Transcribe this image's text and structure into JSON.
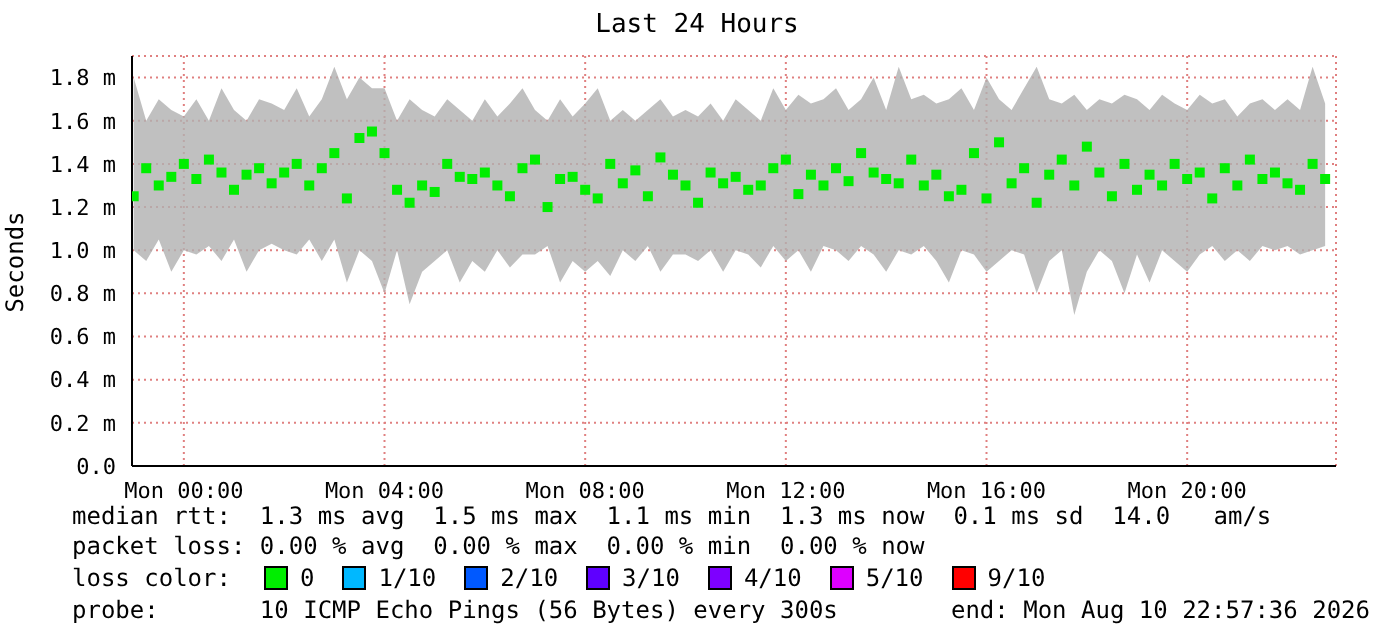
{
  "chart_data": {
    "type": "scatter",
    "title": "Last 24 Hours",
    "ylabel": "Seconds",
    "legend_title": "loss color:",
    "legend": "bottom",
    "grid": true,
    "marker": "square",
    "xlim": [
      "2026-08-09T22:58",
      "2026-08-10T22:58"
    ],
    "xticks": [
      {
        "value": "2026-08-10T00:00",
        "label": "Mon 00:00"
      },
      {
        "value": "2026-08-10T04:00",
        "label": "Mon 04:00"
      },
      {
        "value": "2026-08-10T08:00",
        "label": "Mon 08:00"
      },
      {
        "value": "2026-08-10T12:00",
        "label": "Mon 12:00"
      },
      {
        "value": "2026-08-10T16:00",
        "label": "Mon 16:00"
      },
      {
        "value": "2026-08-10T20:00",
        "label": "Mon 20:00"
      }
    ],
    "ylim": [
      0,
      1.9
    ],
    "yticks": [
      {
        "value": 0,
        "label": "0.0"
      },
      {
        "value": 0.2,
        "label": "0.2 m"
      },
      {
        "value": 0.4,
        "label": "0.4 m"
      },
      {
        "value": 0.6,
        "label": "0.6 m"
      },
      {
        "value": 0.8,
        "label": "0.8 m"
      },
      {
        "value": 1.0,
        "label": "1.0 m"
      },
      {
        "value": 1.2,
        "label": "1.2 m"
      },
      {
        "value": 1.4,
        "label": "1.4 m"
      },
      {
        "value": 1.6,
        "label": "1.6 m"
      },
      {
        "value": 1.8,
        "label": "1.8 m"
      }
    ],
    "x": [
      "2026-08-09T23:00",
      "2026-08-09T23:15",
      "2026-08-09T23:30",
      "2026-08-09T23:45",
      "2026-08-10T00:00",
      "2026-08-10T00:15",
      "2026-08-10T00:30",
      "2026-08-10T00:45",
      "2026-08-10T01:00",
      "2026-08-10T01:15",
      "2026-08-10T01:30",
      "2026-08-10T01:45",
      "2026-08-10T02:00",
      "2026-08-10T02:15",
      "2026-08-10T02:30",
      "2026-08-10T02:45",
      "2026-08-10T03:00",
      "2026-08-10T03:15",
      "2026-08-10T03:30",
      "2026-08-10T03:45",
      "2026-08-10T04:00",
      "2026-08-10T04:15",
      "2026-08-10T04:30",
      "2026-08-10T04:45",
      "2026-08-10T05:00",
      "2026-08-10T05:15",
      "2026-08-10T05:30",
      "2026-08-10T05:45",
      "2026-08-10T06:00",
      "2026-08-10T06:15",
      "2026-08-10T06:30",
      "2026-08-10T06:45",
      "2026-08-10T07:00",
      "2026-08-10T07:15",
      "2026-08-10T07:30",
      "2026-08-10T07:45",
      "2026-08-10T08:00",
      "2026-08-10T08:15",
      "2026-08-10T08:30",
      "2026-08-10T08:45",
      "2026-08-10T09:00",
      "2026-08-10T09:15",
      "2026-08-10T09:30",
      "2026-08-10T09:45",
      "2026-08-10T10:00",
      "2026-08-10T10:15",
      "2026-08-10T10:30",
      "2026-08-10T10:45",
      "2026-08-10T11:00",
      "2026-08-10T11:15",
      "2026-08-10T11:30",
      "2026-08-10T11:45",
      "2026-08-10T12:00",
      "2026-08-10T12:15",
      "2026-08-10T12:30",
      "2026-08-10T12:45",
      "2026-08-10T13:00",
      "2026-08-10T13:15",
      "2026-08-10T13:30",
      "2026-08-10T13:45",
      "2026-08-10T14:00",
      "2026-08-10T14:15",
      "2026-08-10T14:30",
      "2026-08-10T14:45",
      "2026-08-10T15:00",
      "2026-08-10T15:15",
      "2026-08-10T15:30",
      "2026-08-10T15:45",
      "2026-08-10T16:00",
      "2026-08-10T16:15",
      "2026-08-10T16:30",
      "2026-08-10T16:45",
      "2026-08-10T17:00",
      "2026-08-10T17:15",
      "2026-08-10T17:30",
      "2026-08-10T17:45",
      "2026-08-10T18:00",
      "2026-08-10T18:15",
      "2026-08-10T18:30",
      "2026-08-10T18:45",
      "2026-08-10T19:00",
      "2026-08-10T19:15",
      "2026-08-10T19:30",
      "2026-08-10T19:45",
      "2026-08-10T20:00",
      "2026-08-10T20:15",
      "2026-08-10T20:30",
      "2026-08-10T20:45",
      "2026-08-10T21:00",
      "2026-08-10T21:15",
      "2026-08-10T21:30",
      "2026-08-10T21:45",
      "2026-08-10T22:00",
      "2026-08-10T22:15",
      "2026-08-10T22:30",
      "2026-08-10T22:45"
    ],
    "series": [
      {
        "name": "0",
        "color": "#00ee00",
        "values": [
          1.25,
          1.38,
          1.3,
          1.34,
          1.4,
          1.33,
          1.42,
          1.36,
          1.28,
          1.35,
          1.38,
          1.31,
          1.36,
          1.4,
          1.3,
          1.38,
          1.45,
          1.24,
          1.52,
          1.55,
          1.45,
          1.28,
          1.22,
          1.3,
          1.27,
          1.4,
          1.34,
          1.33,
          1.36,
          1.3,
          1.25,
          1.38,
          1.42,
          1.2,
          1.33,
          1.34,
          1.28,
          1.24,
          1.4,
          1.31,
          1.37,
          1.25,
          1.43,
          1.35,
          1.3,
          1.22,
          1.36,
          1.31,
          1.34,
          1.28,
          1.3,
          1.38,
          1.42,
          1.26,
          1.35,
          1.3,
          1.38,
          1.32,
          1.45,
          1.36,
          1.33,
          1.31,
          1.42,
          1.3,
          1.35,
          1.25,
          1.28,
          1.45,
          1.24,
          1.5,
          1.31,
          1.38,
          1.22,
          1.35,
          1.42,
          1.3,
          1.48,
          1.36,
          1.25,
          1.4,
          1.28,
          1.35,
          1.3,
          1.4,
          1.33,
          1.36,
          1.24,
          1.38,
          1.3,
          1.42,
          1.33,
          1.36,
          1.31,
          1.28,
          1.4,
          1.33
        ],
        "lower": [
          1.0,
          0.95,
          1.05,
          0.9,
          1.0,
          0.98,
          1.02,
          0.95,
          1.05,
          0.9,
          1.0,
          1.03,
          1.0,
          0.98,
          1.05,
          0.95,
          1.05,
          0.85,
          1.0,
          0.95,
          0.8,
          1.0,
          0.75,
          0.9,
          0.95,
          1.0,
          0.85,
          0.95,
          0.9,
          1.0,
          0.92,
          0.98,
          0.98,
          1.02,
          0.85,
          0.95,
          0.9,
          0.95,
          0.88,
          1.0,
          0.95,
          1.02,
          0.9,
          0.98,
          0.98,
          0.95,
          1.0,
          0.9,
          1.0,
          0.98,
          0.92,
          1.02,
          0.95,
          1.0,
          0.9,
          1.02,
          1.0,
          0.95,
          1.02,
          0.98,
          0.9,
          1.0,
          0.98,
          1.02,
          0.95,
          0.85,
          1.0,
          0.98,
          0.9,
          0.95,
          1.0,
          0.98,
          0.8,
          0.95,
          1.0,
          0.7,
          0.9,
          1.0,
          0.95,
          0.8,
          0.98,
          0.85,
          1.0,
          0.95,
          0.9,
          0.98,
          1.02,
          0.95,
          1.0,
          0.95,
          1.02,
          1.0,
          1.02,
          0.98,
          1.0,
          1.02
        ],
        "upper": [
          1.8,
          1.6,
          1.7,
          1.65,
          1.62,
          1.7,
          1.6,
          1.75,
          1.65,
          1.6,
          1.7,
          1.68,
          1.65,
          1.75,
          1.62,
          1.7,
          1.85,
          1.7,
          1.8,
          1.75,
          1.75,
          1.6,
          1.7,
          1.65,
          1.62,
          1.7,
          1.65,
          1.6,
          1.7,
          1.62,
          1.68,
          1.75,
          1.65,
          1.6,
          1.7,
          1.62,
          1.68,
          1.75,
          1.6,
          1.65,
          1.6,
          1.65,
          1.7,
          1.62,
          1.65,
          1.62,
          1.68,
          1.6,
          1.7,
          1.65,
          1.6,
          1.75,
          1.65,
          1.72,
          1.68,
          1.7,
          1.75,
          1.65,
          1.7,
          1.8,
          1.65,
          1.85,
          1.7,
          1.72,
          1.68,
          1.7,
          1.75,
          1.65,
          1.8,
          1.7,
          1.65,
          1.75,
          1.85,
          1.7,
          1.68,
          1.72,
          1.65,
          1.7,
          1.68,
          1.72,
          1.7,
          1.65,
          1.72,
          1.68,
          1.65,
          1.72,
          1.68,
          1.7,
          1.62,
          1.68,
          1.7,
          1.65,
          1.7,
          1.65,
          1.85,
          1.68
        ]
      },
      {
        "name": "1/10",
        "color": "#00b8ff",
        "values": [
          null,
          null,
          null,
          null,
          null,
          null,
          null,
          null,
          null,
          null,
          null,
          null,
          null,
          null,
          null,
          null,
          null,
          null,
          null,
          null,
          null,
          null,
          null,
          null,
          null,
          null,
          null,
          null,
          null,
          null,
          null,
          null,
          null,
          null,
          null,
          null,
          null,
          null,
          null,
          null,
          null,
          null,
          null,
          null,
          null,
          null,
          null,
          null,
          null,
          null,
          null,
          null,
          null,
          null,
          null,
          null,
          null,
          null,
          null,
          null,
          null,
          null,
          null,
          null,
          null,
          null,
          null,
          null,
          null,
          null,
          null,
          null,
          null,
          null,
          null,
          null,
          null,
          null,
          null,
          null,
          null,
          null,
          null,
          null,
          null,
          null,
          null,
          null,
          null,
          null,
          null,
          null,
          null,
          null,
          null,
          null
        ]
      },
      {
        "name": "2/10",
        "color": "#0059ff",
        "values": [
          null,
          null,
          null,
          null,
          null,
          null,
          null,
          null,
          null,
          null,
          null,
          null,
          null,
          null,
          null,
          null,
          null,
          null,
          null,
          null,
          null,
          null,
          null,
          null,
          null,
          null,
          null,
          null,
          null,
          null,
          null,
          null,
          null,
          null,
          null,
          null,
          null,
          null,
          null,
          null,
          null,
          null,
          null,
          null,
          null,
          null,
          null,
          null,
          null,
          null,
          null,
          null,
          null,
          null,
          null,
          null,
          null,
          null,
          null,
          null,
          null,
          null,
          null,
          null,
          null,
          null,
          null,
          null,
          null,
          null,
          null,
          null,
          null,
          null,
          null,
          null,
          null,
          null,
          null,
          null,
          null,
          null,
          null,
          null,
          null,
          null,
          null,
          null,
          null,
          null,
          null,
          null,
          null,
          null,
          null,
          null
        ]
      },
      {
        "name": "3/10",
        "color": "#5e00ff",
        "values": [
          null,
          null,
          null,
          null,
          null,
          null,
          null,
          null,
          null,
          null,
          null,
          null,
          null,
          null,
          null,
          null,
          null,
          null,
          null,
          null,
          null,
          null,
          null,
          null,
          null,
          null,
          null,
          null,
          null,
          null,
          null,
          null,
          null,
          null,
          null,
          null,
          null,
          null,
          null,
          null,
          null,
          null,
          null,
          null,
          null,
          null,
          null,
          null,
          null,
          null,
          null,
          null,
          null,
          null,
          null,
          null,
          null,
          null,
          null,
          null,
          null,
          null,
          null,
          null,
          null,
          null,
          null,
          null,
          null,
          null,
          null,
          null,
          null,
          null,
          null,
          null,
          null,
          null,
          null,
          null,
          null,
          null,
          null,
          null,
          null,
          null,
          null,
          null,
          null,
          null,
          null,
          null,
          null,
          null,
          null,
          null
        ]
      },
      {
        "name": "4/10",
        "color": "#7e00ff",
        "values": [
          null,
          null,
          null,
          null,
          null,
          null,
          null,
          null,
          null,
          null,
          null,
          null,
          null,
          null,
          null,
          null,
          null,
          null,
          null,
          null,
          null,
          null,
          null,
          null,
          null,
          null,
          null,
          null,
          null,
          null,
          null,
          null,
          null,
          null,
          null,
          null,
          null,
          null,
          null,
          null,
          null,
          null,
          null,
          null,
          null,
          null,
          null,
          null,
          null,
          null,
          null,
          null,
          null,
          null,
          null,
          null,
          null,
          null,
          null,
          null,
          null,
          null,
          null,
          null,
          null,
          null,
          null,
          null,
          null,
          null,
          null,
          null,
          null,
          null,
          null,
          null,
          null,
          null,
          null,
          null,
          null,
          null,
          null,
          null,
          null,
          null,
          null,
          null,
          null,
          null,
          null,
          null,
          null,
          null,
          null,
          null
        ]
      },
      {
        "name": "5/10",
        "color": "#dd00ff",
        "values": [
          null,
          null,
          null,
          null,
          null,
          null,
          null,
          null,
          null,
          null,
          null,
          null,
          null,
          null,
          null,
          null,
          null,
          null,
          null,
          null,
          null,
          null,
          null,
          null,
          null,
          null,
          null,
          null,
          null,
          null,
          null,
          null,
          null,
          null,
          null,
          null,
          null,
          null,
          null,
          null,
          null,
          null,
          null,
          null,
          null,
          null,
          null,
          null,
          null,
          null,
          null,
          null,
          null,
          null,
          null,
          null,
          null,
          null,
          null,
          null,
          null,
          null,
          null,
          null,
          null,
          null,
          null,
          null,
          null,
          null,
          null,
          null,
          null,
          null,
          null,
          null,
          null,
          null,
          null,
          null,
          null,
          null,
          null,
          null,
          null,
          null,
          null,
          null,
          null,
          null,
          null,
          null,
          null,
          null,
          null,
          null
        ]
      },
      {
        "name": "9/10",
        "color": "#ff0000",
        "values": [
          null,
          null,
          null,
          null,
          null,
          null,
          null,
          null,
          null,
          null,
          null,
          null,
          null,
          null,
          null,
          null,
          null,
          null,
          null,
          null,
          null,
          null,
          null,
          null,
          null,
          null,
          null,
          null,
          null,
          null,
          null,
          null,
          null,
          null,
          null,
          null,
          null,
          null,
          null,
          null,
          null,
          null,
          null,
          null,
          null,
          null,
          null,
          null,
          null,
          null,
          null,
          null,
          null,
          null,
          null,
          null,
          null,
          null,
          null,
          null,
          null,
          null,
          null,
          null,
          null,
          null,
          null,
          null,
          null,
          null,
          null,
          null,
          null,
          null,
          null,
          null,
          null,
          null,
          null,
          null,
          null,
          null,
          null,
          null,
          null,
          null,
          null,
          null,
          null,
          null,
          null,
          null,
          null,
          null,
          null,
          null
        ]
      }
    ],
    "annotations": [
      "median rtt:  1.3 ms avg  1.5 ms max  1.1 ms min  1.3 ms now  0.1 ms sd  14.0   am/s",
      "packet loss: 0.00 % avg  0.00 % max  0.00 % min  0.00 % now",
      "probe:       10 ICMP Echo Pings (56 Bytes) every 300s",
      "end: Mon Aug 10 22:57:36 2026"
    ]
  }
}
